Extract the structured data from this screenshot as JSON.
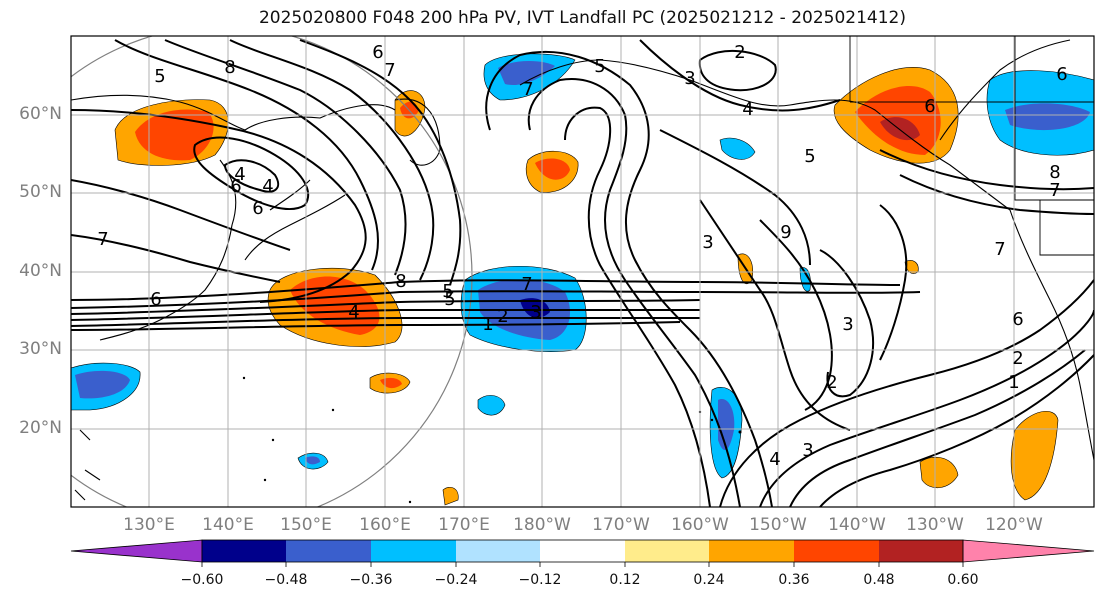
{
  "title": "2025020800 F048 200 hPa PV, IVT Landfall PC (2025021212 - 2025021412)",
  "latitude_labels": [
    "60°N",
    "50°N",
    "40°N",
    "30°N",
    "20°N"
  ],
  "longitude_labels": [
    "130°E",
    "140°E",
    "150°E",
    "160°E",
    "170°E",
    "180°W",
    "170°W",
    "160°W",
    "150°W",
    "140°W",
    "130°W",
    "120°W"
  ],
  "colorbar": {
    "tick_labels": [
      "−0.60",
      "−0.48",
      "−0.36",
      "−0.24",
      "−0.12",
      "0.12",
      "0.24",
      "0.36",
      "0.48",
      "0.60"
    ],
    "colors": [
      "#9932cc",
      "#00008b",
      "#3a5fcd",
      "#00bfff",
      "#b0e2ff",
      "#ffffff",
      "#ffec8b",
      "#ffa500",
      "#ff4500",
      "#b22222",
      "#ff82ab"
    ],
    "extend": "both"
  },
  "contour_labels": [
    "6",
    "7",
    "8",
    "5",
    "6",
    "7",
    "4",
    "6",
    "7",
    "2",
    "3",
    "4",
    "5",
    "6",
    "5",
    "9",
    "3",
    "3",
    "2",
    "4",
    "3",
    "2",
    "1",
    "8",
    "7",
    "6",
    "5",
    "4",
    "3",
    "2",
    "1",
    "6",
    "8",
    "7",
    "7",
    "6",
    "5",
    "4"
  ]
}
